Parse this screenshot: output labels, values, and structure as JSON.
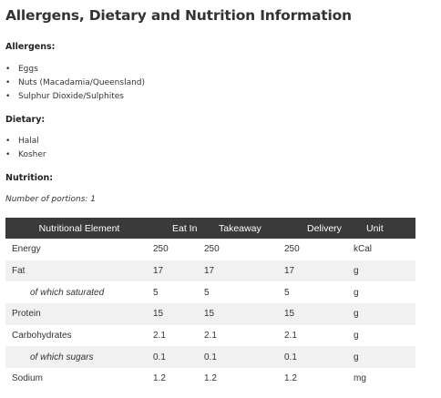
{
  "title": "Allergens, Dietary and Nutrition Information",
  "allergens": {
    "heading": "Allergens:",
    "items": [
      "Eggs",
      "Nuts (Macadamia/Queensland)",
      "Sulphur Dioxide/Sulphites"
    ]
  },
  "dietary": {
    "heading": "Dietary:",
    "items": [
      "Halal",
      "Kosher"
    ]
  },
  "nutrition": {
    "heading": "Nutrition:",
    "portions": "Number of portions: 1",
    "columns": [
      "Nutritional Element",
      "Eat In",
      "Takeaway",
      "Delivery",
      "Unit"
    ],
    "rows": [
      {
        "name": "Energy",
        "eat_in": "250",
        "takeaway": "250",
        "delivery": "250",
        "unit": "kCal"
      },
      {
        "name": "Fat",
        "eat_in": "17",
        "takeaway": "17",
        "delivery": "17",
        "unit": "g"
      },
      {
        "name": "of which saturated",
        "eat_in": "5",
        "takeaway": "5",
        "delivery": "5",
        "unit": "g"
      },
      {
        "name": "Protein",
        "eat_in": "15",
        "takeaway": "15",
        "delivery": "15",
        "unit": "g"
      },
      {
        "name": "Carbohydrates",
        "eat_in": "2.1",
        "takeaway": "2.1",
        "delivery": "2.1",
        "unit": "g"
      },
      {
        "name": "of which sugars",
        "eat_in": "0.1",
        "takeaway": "0.1",
        "delivery": "0.1",
        "unit": "g"
      },
      {
        "name": "Sodium",
        "eat_in": "1.2",
        "takeaway": "1.2",
        "delivery": "1.2",
        "unit": "mg"
      }
    ]
  },
  "colors": {
    "header_bg": "#3a3a3a",
    "stripe_bg": "#f1f1f1"
  }
}
